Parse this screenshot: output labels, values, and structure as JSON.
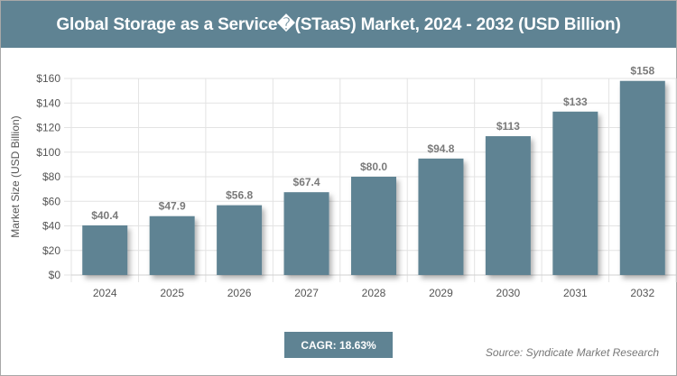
{
  "title": "Global Storage as a Service�(STaaS) Market, 2024 - 2032 (USD Billion)",
  "cagr_label": "CAGR: 18.63%",
  "source": "Source: Syndicate Market Research",
  "colors": {
    "bar": "#5f8393",
    "header": "#5f8393"
  },
  "chart_data": {
    "type": "bar",
    "title": "Global Storage as a Service�(STaaS) Market, 2024 - 2032 (USD Billion)",
    "ylabel": "Market Size (USD Billion)",
    "xlabel": "",
    "ylim": [
      0,
      160
    ],
    "yticks": [
      0,
      20,
      40,
      60,
      80,
      100,
      120,
      140,
      160
    ],
    "ytick_labels": [
      "$0",
      "$20",
      "$40",
      "$60",
      "$80",
      "$100",
      "$120",
      "$140",
      "$160"
    ],
    "grid": true,
    "categories": [
      "2024",
      "2025",
      "2026",
      "2027",
      "2028",
      "2029",
      "2030",
      "2031",
      "2032"
    ],
    "values": [
      40.4,
      47.9,
      56.8,
      67.4,
      80.0,
      94.8,
      113,
      133,
      158
    ],
    "data_labels": [
      "$40.4",
      "$47.9",
      "$56.8",
      "$67.4",
      "$80.0",
      "$94.8",
      "$113",
      "$133",
      "$158"
    ]
  }
}
